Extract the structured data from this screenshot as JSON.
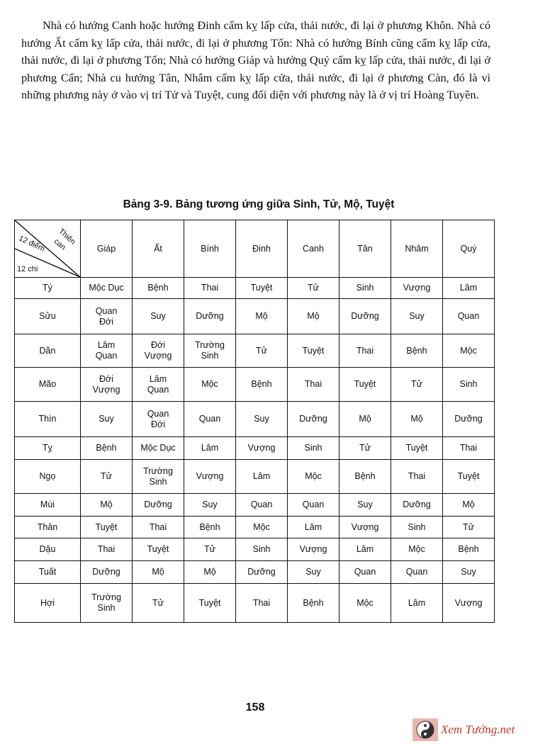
{
  "paragraph": "Nhà có hướng Canh hoặc hướng Đinh cấm kỵ lấp cửa, thải nước, đi lại ở phương Khôn. Nhà có hướng Ất cấm kỵ lấp cửa, thải nước, đi lại ở phương Tốn: Nhà có hướng Bính cũng cấm kỵ lấp cửa, thải nước, đi lại ở phương Tốn; Nhà có hướng Giáp và hướng Quý cấm kỵ lấp cửa, thải nước, đi lại ở phương Cấn; Nhà cu hướng Tân, Nhâm cấm kỵ lấp cửa, thải nước, đi lại ở phương Càn, đó là vì những phương này ở vào vị trí Tử và Tuyệt, cung đối diện với phương này là ở vị trí Hoàng Tuyền.",
  "table": {
    "caption": "Bảng 3-9. Bảng tương ứng giữa Sinh, Tử, Mộ, Tuyệt",
    "corner": {
      "top": "Thiên can",
      "middle": "12 điểm",
      "bottom": "12 chi"
    },
    "columns": [
      "Giáp",
      "Ất",
      "Bính",
      "Đinh",
      "Canh",
      "Tân",
      "Nhâm",
      "Quý"
    ],
    "rows": [
      {
        "label": "Tý",
        "cells": [
          "Mộc Dục",
          "Bệnh",
          "Thai",
          "Tuyệt",
          "Tử",
          "Sinh",
          "Vượng",
          "Lâm"
        ]
      },
      {
        "label": "Sửu",
        "cells": [
          "Quan Đới",
          "Suy",
          "Dưỡng",
          "Mộ",
          "Mộ",
          "Dưỡng",
          "Suy",
          "Quan"
        ]
      },
      {
        "label": "Dần",
        "cells": [
          "Lâm Quan",
          "Đới Vượng",
          "Trường Sinh",
          "Tử",
          "Tuyệt",
          "Thai",
          "Bệnh",
          "Mộc"
        ]
      },
      {
        "label": "Mão",
        "cells": [
          "Đới Vượng",
          "Lâm Quan",
          "Mộc",
          "Bệnh",
          "Thai",
          "Tuyệt",
          "Tử",
          "Sinh"
        ]
      },
      {
        "label": "Thìn",
        "cells": [
          "Suy",
          "Quan Đới",
          "Quan",
          "Suy",
          "Dưỡng",
          "Mộ",
          "Mộ",
          "Dưỡng"
        ]
      },
      {
        "label": "Tỵ",
        "cells": [
          "Bệnh",
          "Mộc Dục",
          "Lâm",
          "Vượng",
          "Sinh",
          "Tử",
          "Tuyệt",
          "Thai"
        ]
      },
      {
        "label": "Ngọ",
        "cells": [
          "Tử",
          "Trường Sinh",
          "Vượng",
          "Lâm",
          "Mộc",
          "Bệnh",
          "Thai",
          "Tuyệt"
        ]
      },
      {
        "label": "Mùi",
        "cells": [
          "Mộ",
          "Dưỡng",
          "Suy",
          "Quan",
          "Quan",
          "Suy",
          "Dưỡng",
          "Mộ"
        ]
      },
      {
        "label": "Thân",
        "cells": [
          "Tuyệt",
          "Thai",
          "Bệnh",
          "Mộc",
          "Lâm",
          "Vượng",
          "Sinh",
          "Tử"
        ]
      },
      {
        "label": "Dậu",
        "cells": [
          "Thai",
          "Tuyệt",
          "Tử",
          "Sinh",
          "Vượng",
          "Lâm",
          "Mộc",
          "Bệnh"
        ]
      },
      {
        "label": "Tuất",
        "cells": [
          "Dưỡng",
          "Mộ",
          "Mộ",
          "Dưỡng",
          "Suy",
          "Quan",
          "Quan",
          "Suy"
        ]
      },
      {
        "label": "Hợi",
        "cells": [
          "Trường Sinh",
          "Tử",
          "Tuyệt",
          "Thai",
          "Bệnh",
          "Mộc",
          "Lâm",
          "Vượng"
        ]
      }
    ]
  },
  "page_number": "158",
  "watermark": {
    "text": "Xem Tướng.net",
    "icon": "yin-yang-icon",
    "color": "#c0392b"
  }
}
